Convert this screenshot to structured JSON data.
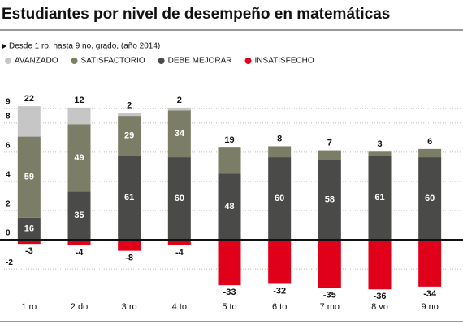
{
  "chart_data": {
    "type": "stacked_bar",
    "title": "Estudiantes por nivel de desempeño en matemáticas",
    "subtitle": "Desde 1 ro. hasta 9 no. grado, (año 2014)",
    "categories": [
      "1 ro",
      "2 do",
      "3 ro",
      "4 to",
      "5 to",
      "6 to",
      "7 mo",
      "8 vo",
      "9 no"
    ],
    "series": [
      {
        "name": "AVANZADO",
        "color": "#c6c6c6",
        "axis": "y2",
        "values": [
          22,
          12,
          2,
          2,
          null,
          null,
          null,
          null,
          null
        ]
      },
      {
        "name": "SATISFACTORIO",
        "color": "#7b7d66",
        "axis": "y2",
        "values": [
          59,
          49,
          29,
          34,
          19,
          8,
          7,
          3,
          6
        ]
      },
      {
        "name": "DEBE MEJORAR",
        "color": "#4a4a48",
        "axis": "y2",
        "values": [
          16,
          35,
          61,
          60,
          48,
          60,
          58,
          61,
          60
        ]
      },
      {
        "name": "INSATISFECHO",
        "color": "#e1001a",
        "axis": "y2",
        "values": [
          -3,
          -4,
          -8,
          -4,
          -33,
          -32,
          -35,
          -36,
          -34
        ]
      }
    ],
    "ylim": [
      -4.1,
      10.6
    ],
    "yticks": [
      9,
      8,
      6,
      4,
      2,
      0,
      -2
    ],
    "y2lim": [
      -43.5,
      112.4
    ],
    "grid": true
  }
}
